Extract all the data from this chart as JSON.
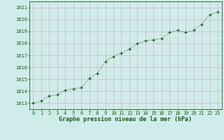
{
  "x": [
    0,
    1,
    2,
    3,
    4,
    5,
    6,
    7,
    8,
    9,
    10,
    11,
    12,
    13,
    14,
    15,
    16,
    17,
    18,
    19,
    20,
    21,
    22,
    23
  ],
  "y": [
    1013.0,
    1013.2,
    1013.6,
    1013.7,
    1014.1,
    1014.2,
    1014.3,
    1015.1,
    1015.5,
    1016.5,
    1016.9,
    1017.2,
    1017.5,
    1018.0,
    1018.2,
    1018.3,
    1018.4,
    1018.9,
    1019.1,
    1018.9,
    1019.1,
    1019.6,
    1020.4,
    1020.6
  ],
  "line_color": "#1a5c1a",
  "marker": "+",
  "marker_color": "#1a5c1a",
  "bg_color": "#d0ecea",
  "grid_color": "#c8b8c8",
  "label_color": "#1a5c1a",
  "xlabel": "Graphe pression niveau de la mer (hPa)",
  "ylim_min": 1012.5,
  "ylim_max": 1021.5,
  "xlim_min": -0.5,
  "xlim_max": 23.5,
  "yticks": [
    1013,
    1014,
    1015,
    1016,
    1017,
    1018,
    1019,
    1020,
    1021
  ],
  "xticks": [
    0,
    1,
    2,
    3,
    4,
    5,
    6,
    7,
    8,
    9,
    10,
    11,
    12,
    13,
    14,
    15,
    16,
    17,
    18,
    19,
    20,
    21,
    22,
    23
  ]
}
